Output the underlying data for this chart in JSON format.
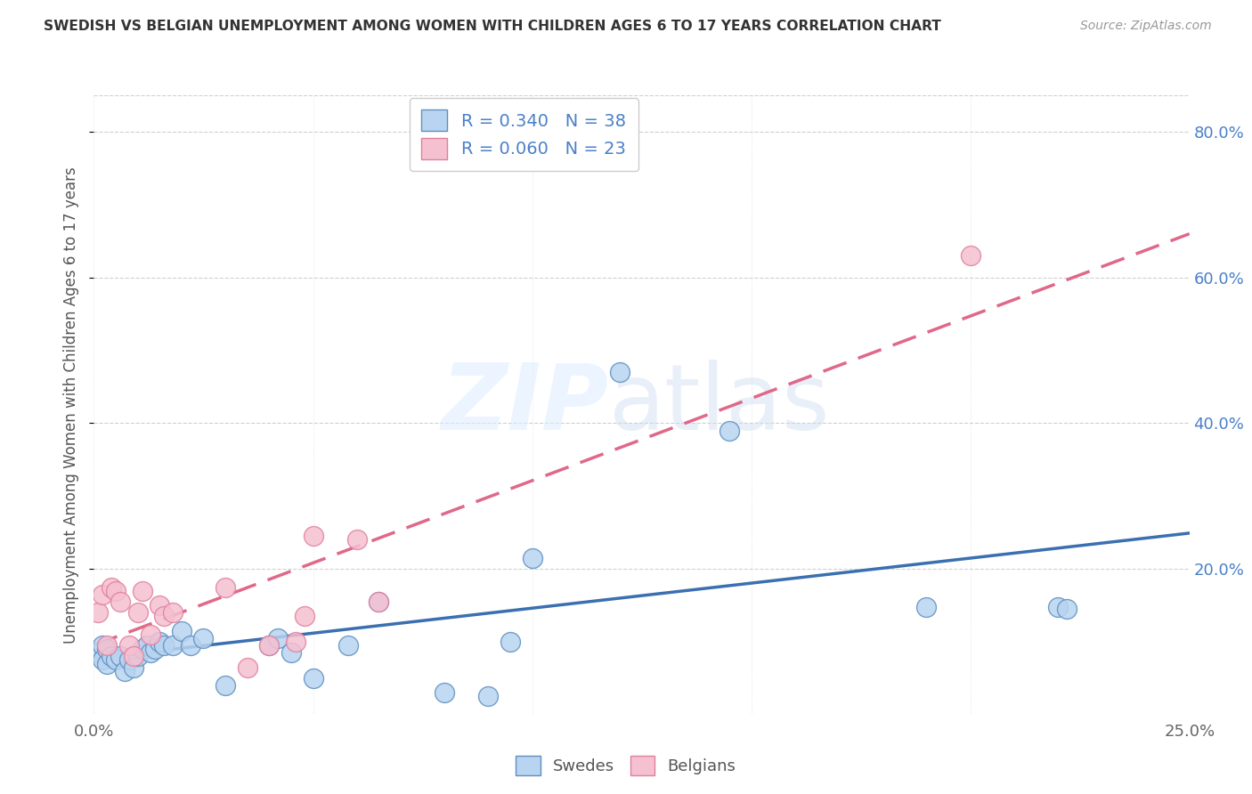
{
  "title": "SWEDISH VS BELGIAN UNEMPLOYMENT AMONG WOMEN WITH CHILDREN AGES 6 TO 17 YEARS CORRELATION CHART",
  "source": "Source: ZipAtlas.com",
  "ylabel": "Unemployment Among Women with Children Ages 6 to 17 years",
  "xlim": [
    0.0,
    0.25
  ],
  "ylim": [
    0.0,
    0.85
  ],
  "xticks": [
    0.0,
    0.05,
    0.1,
    0.15,
    0.2,
    0.25
  ],
  "xtick_labels": [
    "0.0%",
    "",
    "",
    "",
    "",
    "25.0%"
  ],
  "yticks_right": [
    0.2,
    0.4,
    0.6,
    0.8
  ],
  "ytick_labels_right": [
    "20.0%",
    "40.0%",
    "60.0%",
    "80.0%"
  ],
  "swede_color": "#b8d4f0",
  "belgian_color": "#f5c0d0",
  "swede_edge_color": "#6090c0",
  "belgian_edge_color": "#e080a0",
  "swede_line_color": "#3a70b0",
  "belgian_line_color": "#e06888",
  "R_swede": 0.34,
  "N_swede": 38,
  "R_belgian": 0.06,
  "N_belgian": 23,
  "background_color": "#ffffff",
  "grid_color": "#d0d0d0",
  "swede_points_x": [
    0.001,
    0.002,
    0.002,
    0.003,
    0.003,
    0.004,
    0.005,
    0.006,
    0.007,
    0.008,
    0.009,
    0.01,
    0.011,
    0.012,
    0.013,
    0.014,
    0.015,
    0.016,
    0.018,
    0.02,
    0.022,
    0.025,
    0.03,
    0.04,
    0.042,
    0.045,
    0.05,
    0.058,
    0.065,
    0.08,
    0.09,
    0.095,
    0.1,
    0.12,
    0.145,
    0.19,
    0.22,
    0.222
  ],
  "swede_points_y": [
    0.085,
    0.095,
    0.075,
    0.09,
    0.07,
    0.08,
    0.075,
    0.08,
    0.06,
    0.075,
    0.065,
    0.08,
    0.09,
    0.095,
    0.085,
    0.09,
    0.1,
    0.095,
    0.095,
    0.115,
    0.095,
    0.105,
    0.04,
    0.095,
    0.105,
    0.085,
    0.05,
    0.095,
    0.155,
    0.03,
    0.025,
    0.1,
    0.215,
    0.47,
    0.39,
    0.148,
    0.148,
    0.145
  ],
  "belgian_points_x": [
    0.001,
    0.002,
    0.003,
    0.004,
    0.005,
    0.006,
    0.008,
    0.009,
    0.01,
    0.011,
    0.013,
    0.015,
    0.016,
    0.018,
    0.03,
    0.035,
    0.04,
    0.046,
    0.048,
    0.06,
    0.065,
    0.05,
    0.2
  ],
  "belgian_points_y": [
    0.14,
    0.165,
    0.095,
    0.175,
    0.17,
    0.155,
    0.095,
    0.08,
    0.14,
    0.17,
    0.11,
    0.15,
    0.135,
    0.14,
    0.175,
    0.065,
    0.095,
    0.1,
    0.135,
    0.24,
    0.155,
    0.245,
    0.63
  ]
}
